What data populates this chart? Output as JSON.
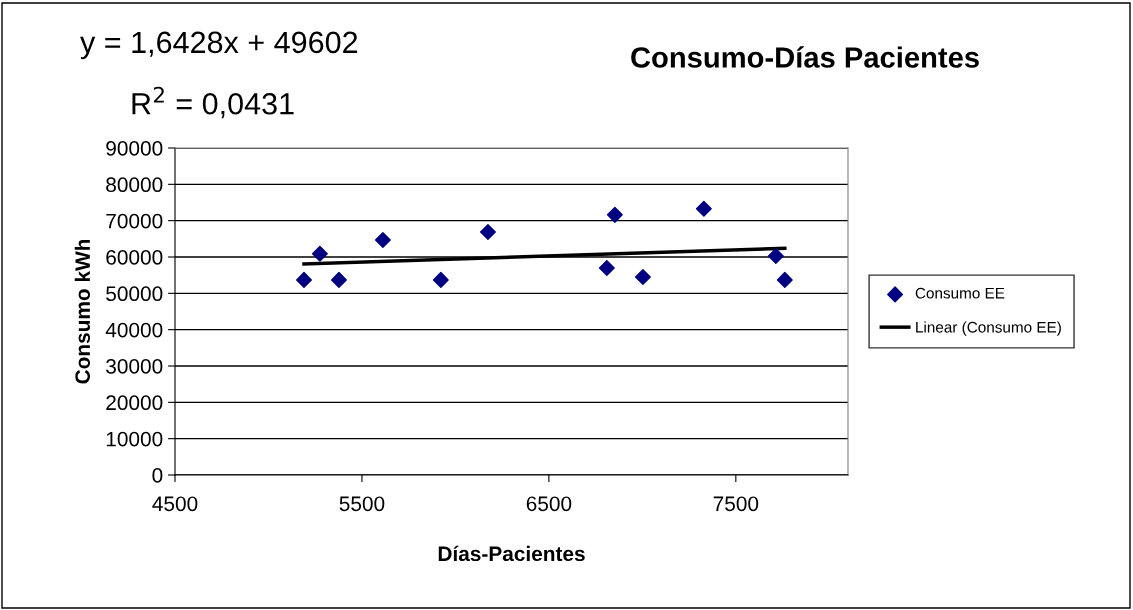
{
  "chart_data": {
    "type": "scatter",
    "title": "Consumo-Días Pacientes",
    "xlabel": "Días-Pacientes",
    "ylabel": "Consumo kWh",
    "annotations": [
      "y = 1,6428x + 49602",
      "R$^{2}$ = 0,0431"
    ],
    "series": [
      {
        "name": "Consumo EE",
        "color": "#000080",
        "marker": "diamond",
        "x": [
          5190,
          5275,
          5377,
          5612,
          5922,
          6174,
          6810,
          6853,
          7003,
          7329,
          7714,
          7762
        ],
        "values": [
          53700,
          60900,
          53700,
          64700,
          53700,
          66900,
          57000,
          71600,
          54500,
          73300,
          60300,
          53700
        ]
      },
      {
        "name": "Linear (Consumo EE)",
        "type": "line",
        "color": "#000000",
        "line_style": "solid",
        "x": [
          5190,
          7762
        ],
        "values": [
          58100,
          62400
        ]
      }
    ],
    "xlim": [
      4500,
      8100
    ],
    "xticks": [
      4500,
      5500,
      6500,
      7500
    ],
    "ylim": [
      0,
      90000
    ],
    "yticks": [
      0,
      10000,
      20000,
      30000,
      40000,
      50000,
      60000,
      70000,
      80000,
      90000
    ],
    "grid": "y",
    "legend": "right"
  }
}
